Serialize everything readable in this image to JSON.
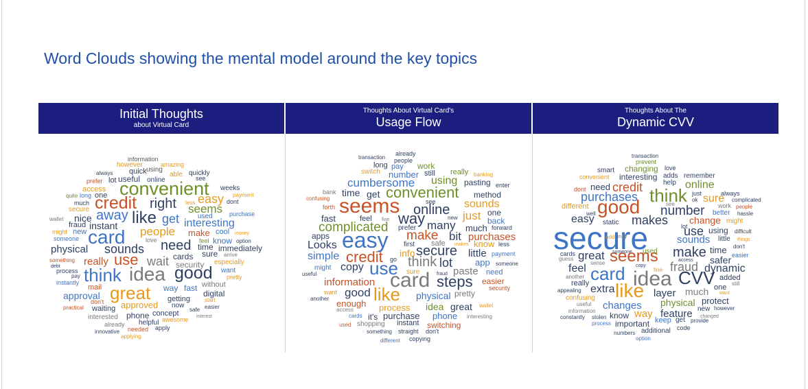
{
  "title": "Word Clouds showing the mental model around the key topics",
  "panels": [
    {
      "header_line1": "Initial Thoughts",
      "header_line2": "about Virtual Card",
      "words": {
        "information": "information",
        "however": "however",
        "amazing": "amazing",
        "always": "always",
        "quick": "quick",
        "using": "using",
        "able": "able",
        "quickly": "quickly",
        "see": "see",
        "prefer": "prefer",
        "lot": "lot",
        "useful": "useful",
        "online": "online",
        "convenient": "convenient",
        "weeks": "weeks",
        "access": "access",
        "payment": "payment",
        "quite": "quite",
        "long": "long",
        "one": "one",
        "much": "much",
        "credit": "credit",
        "right": "right",
        "less": "less",
        "easy": "easy",
        "dont": "dont",
        "secure": "secure",
        "seems": "seems",
        "purchase": "purchase",
        "wallet": "wallet",
        "nice": "nice",
        "away": "away",
        "like": "like",
        "get": "get",
        "used": "used",
        "fraud": "fraud",
        "instant": "instant",
        "interesting": "interesting",
        "might": "might",
        "new": "new",
        "card": "card",
        "people": "people",
        "make": "make",
        "cool": "cool",
        "money": "money",
        "someone": "someone",
        "love": "love",
        "feel": "feel",
        "know": "know",
        "option": "option",
        "physical": "physical",
        "sounds": "sounds",
        "need": "need",
        "time": "time",
        "immediately": "immediately",
        "something": "something",
        "really": "really",
        "use": "use",
        "wait": "wait",
        "cards": "cards",
        "sure": "sure",
        "arrive": "arrive",
        "debt": "debt",
        "process": "process",
        "security": "security",
        "especially": "especially",
        "pay": "pay",
        "think": "think",
        "idea": "idea",
        "good": "good",
        "want": "want",
        "instantly": "instantly",
        "pretty": "pretty",
        "mail": "mail",
        "approval": "approval",
        "great": "great",
        "way": "way",
        "fast": "fast",
        "without": "without",
        "digital": "digital",
        "dont_small": "don't",
        "getting": "getting",
        "start": "start",
        "practical": "practical",
        "waiting": "waiting",
        "approved": "approved",
        "now": "now",
        "easier": "easier",
        "interested": "interested",
        "phone": "phone",
        "concept": "concept",
        "safe": "safe",
        "interest": "interest",
        "already": "already",
        "helpful": "helpful",
        "awesome": "awesome",
        "innovative": "innovative",
        "needed": "needed",
        "apply": "apply",
        "applying": "applying"
      }
    },
    {
      "header_line1": "Thoughts About Virtual Card's",
      "header_line2": "Usage Flow",
      "words": {
        "transaction": "transaction",
        "already": "already",
        "people": "people",
        "long": "long",
        "pay": "pay",
        "work": "work",
        "switch": "switch",
        "number": "number",
        "still": "still",
        "really": "really",
        "banking": "banking",
        "cumbersome": "cumbersome",
        "using": "using",
        "pasting": "pasting",
        "enter": "enter",
        "bank": "bank",
        "time": "time",
        "get": "get",
        "convenient": "convenient",
        "method": "method",
        "confusing": "confusing",
        "see": "see",
        "forth": "forth",
        "seems": "seems",
        "sounds": "sounds",
        "online": "online",
        "fast": "fast",
        "feel": "feel",
        "fine": "fine",
        "way": "way",
        "new": "new",
        "just": "just",
        "one": "one",
        "back": "back",
        "complicated": "complicated",
        "prefer": "prefer",
        "many": "many",
        "much": "much",
        "forward": "forward",
        "apps": "apps",
        "easy": "easy",
        "make": "make",
        "bit": "bit",
        "purchases": "purchases",
        "Looks": "Looks",
        "first": "first",
        "safe": "safe",
        "makes": "makes",
        "know": "know",
        "less": "less",
        "simple": "simple",
        "info": "info",
        "secure": "secure",
        "little": "little",
        "payment": "payment",
        "credit": "credit",
        "go": "go",
        "think": "think",
        "lot": "lot",
        "app": "app",
        "someone": "someone",
        "might": "might",
        "copy": "copy",
        "use": "use",
        "sure": "sure",
        "fraud": "fraud",
        "paste": "paste",
        "need": "need",
        "useful": "useful",
        "information": "information",
        "card": "card",
        "steps": "steps",
        "easier": "easier",
        "want": "want",
        "good": "good",
        "like": "like",
        "security": "security",
        "another": "another",
        "physical": "physical",
        "pretty": "pretty",
        "enough": "enough",
        "process": "process",
        "idea": "idea",
        "great": "great",
        "wallet": "wallet",
        "access": "access",
        "cards": "cards",
        "its": "it's",
        "purchase": "purchase",
        "phone": "phone",
        "interesting": "interesting",
        "used": "used",
        "shopping": "shopping",
        "instant": "instant",
        "switching": "switching",
        "something": "something",
        "straight": "straight",
        "dont": "don't",
        "different": "different",
        "copying": "copying"
      }
    },
    {
      "header_line1": "Thoughts About The",
      "header_line2": "Dynamic CVV",
      "words": {
        "transaction": "transaction",
        "prevent": "prevent",
        "smart": "smart",
        "changing": "changing",
        "love": "love",
        "convenient": "convenient",
        "interesting": "interesting",
        "adds": "adds",
        "remember": "remember",
        "dont": "dont",
        "need": "need",
        "credit": "credit",
        "help": "help",
        "online": "online",
        "think": "think",
        "just": "just",
        "always": "always",
        "purchases": "purchases",
        "ok": "ok",
        "sure": "sure",
        "complicated": "complicated",
        "different": "different",
        "good": "good",
        "see": "see",
        "work": "work",
        "people": "people",
        "well": "well",
        "number": "number",
        "better": "better",
        "hassle": "hassle",
        "easy": "easy",
        "static": "static",
        "makes": "makes",
        "change": "change",
        "might": "might",
        "secure": "secure",
        "lot": "lot",
        "use": "use",
        "using": "using",
        "difficult": "difficult",
        "add": "add",
        "sounds": "sounds",
        "little": "little",
        "things": "things",
        "may": "may",
        "cards": "cards",
        "make": "make",
        "time": "time",
        "dont2": "don't",
        "guess": "guess",
        "great": "great",
        "seems": "seems",
        "someone": "someone",
        "used": "used",
        "access": "access",
        "safer": "safer",
        "easier": "easier",
        "sense": "sense",
        "feel": "feel",
        "copy": "copy",
        "fine": "fine",
        "fraud": "fraud",
        "dynamic": "dynamic",
        "card": "card",
        "idea": "idea",
        "CVV": "CVV",
        "added": "added",
        "another": "another",
        "really": "really",
        "still": "still",
        "extra": "extra",
        "one": "one",
        "appealing": "appealing",
        "like": "like",
        "layer": "layer",
        "much": "much",
        "want": "want",
        "confusing": "confusing",
        "useful": "useful",
        "physical": "physical",
        "protect": "protect",
        "changes": "changes",
        "information": "information",
        "new": "new",
        "however": "however",
        "constantly": "constantly",
        "stolen": "stolen",
        "know": "know",
        "way": "way",
        "feature": "feature",
        "changed": "changed",
        "process": "process",
        "important": "important",
        "keep": "keep",
        "get": "get",
        "provide": "provide",
        "numbers": "numbers",
        "additional": "additional",
        "code": "code",
        "option": "option"
      }
    }
  ]
}
